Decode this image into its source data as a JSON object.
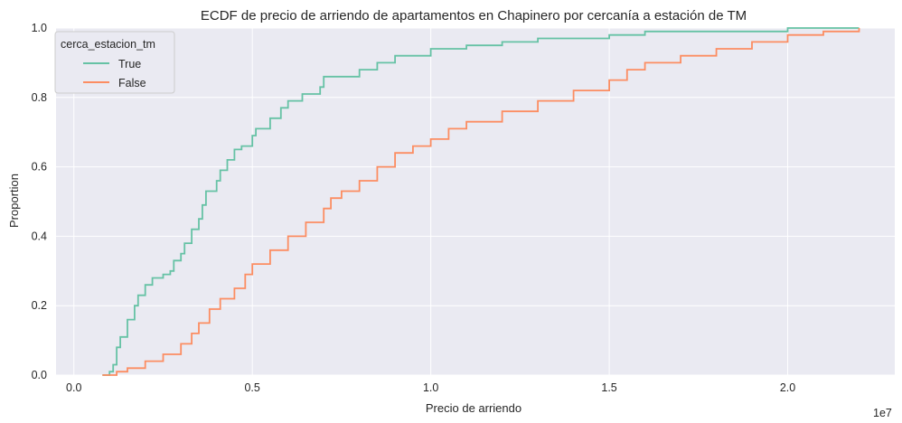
{
  "chart_data": {
    "type": "line",
    "subtype": "ecdf-step",
    "title": "ECDF de precio de arriendo de apartamentos en Chapinero por cercanía a estación de TM",
    "xlabel": "Precio de arriendo",
    "ylabel": "Proportion",
    "x_offset_label": "1e7",
    "xlim": [
      -0.05,
      2.3
    ],
    "ylim": [
      0,
      1
    ],
    "x_ticks": [
      0.0,
      0.5,
      1.0,
      1.5,
      2.0
    ],
    "x_tick_labels": [
      "0.0",
      "0.5",
      "1.0",
      "1.5",
      "2.0"
    ],
    "y_ticks": [
      0.0,
      0.2,
      0.4,
      0.6,
      0.8,
      1.0
    ],
    "y_tick_labels": [
      "0.0",
      "0.2",
      "0.4",
      "0.6",
      "0.8",
      "1.0"
    ],
    "grid": true,
    "legend_position": "top-left",
    "legend_title": "cerca_estacion_tm",
    "background_color": "#eaeaf2",
    "grid_color": "#ffffff",
    "series": [
      {
        "name": "True",
        "color": "#66c2a5",
        "points": [
          [
            0.08,
            0.0
          ],
          [
            0.1,
            0.01
          ],
          [
            0.11,
            0.03
          ],
          [
            0.12,
            0.08
          ],
          [
            0.13,
            0.11
          ],
          [
            0.15,
            0.16
          ],
          [
            0.17,
            0.2
          ],
          [
            0.18,
            0.23
          ],
          [
            0.2,
            0.26
          ],
          [
            0.22,
            0.28
          ],
          [
            0.25,
            0.29
          ],
          [
            0.27,
            0.3
          ],
          [
            0.28,
            0.33
          ],
          [
            0.3,
            0.35
          ],
          [
            0.31,
            0.38
          ],
          [
            0.33,
            0.42
          ],
          [
            0.35,
            0.45
          ],
          [
            0.36,
            0.49
          ],
          [
            0.37,
            0.53
          ],
          [
            0.4,
            0.56
          ],
          [
            0.41,
            0.59
          ],
          [
            0.43,
            0.62
          ],
          [
            0.45,
            0.65
          ],
          [
            0.47,
            0.66
          ],
          [
            0.5,
            0.69
          ],
          [
            0.51,
            0.71
          ],
          [
            0.55,
            0.74
          ],
          [
            0.58,
            0.77
          ],
          [
            0.6,
            0.79
          ],
          [
            0.64,
            0.81
          ],
          [
            0.69,
            0.83
          ],
          [
            0.7,
            0.86
          ],
          [
            0.8,
            0.88
          ],
          [
            0.85,
            0.9
          ],
          [
            0.9,
            0.92
          ],
          [
            1.0,
            0.94
          ],
          [
            1.1,
            0.95
          ],
          [
            1.2,
            0.96
          ],
          [
            1.3,
            0.97
          ],
          [
            1.5,
            0.98
          ],
          [
            1.6,
            0.99
          ],
          [
            2.0,
            1.0
          ],
          [
            2.2,
            1.0
          ]
        ]
      },
      {
        "name": "False",
        "color": "#fc8d62",
        "points": [
          [
            0.08,
            0.0
          ],
          [
            0.12,
            0.01
          ],
          [
            0.15,
            0.02
          ],
          [
            0.2,
            0.04
          ],
          [
            0.25,
            0.06
          ],
          [
            0.3,
            0.09
          ],
          [
            0.33,
            0.12
          ],
          [
            0.35,
            0.15
          ],
          [
            0.38,
            0.19
          ],
          [
            0.41,
            0.22
          ],
          [
            0.45,
            0.25
          ],
          [
            0.48,
            0.29
          ],
          [
            0.5,
            0.32
          ],
          [
            0.55,
            0.36
          ],
          [
            0.6,
            0.4
          ],
          [
            0.65,
            0.44
          ],
          [
            0.7,
            0.48
          ],
          [
            0.72,
            0.51
          ],
          [
            0.75,
            0.53
          ],
          [
            0.8,
            0.56
          ],
          [
            0.85,
            0.6
          ],
          [
            0.9,
            0.64
          ],
          [
            0.95,
            0.66
          ],
          [
            1.0,
            0.68
          ],
          [
            1.05,
            0.71
          ],
          [
            1.1,
            0.73
          ],
          [
            1.2,
            0.76
          ],
          [
            1.3,
            0.79
          ],
          [
            1.4,
            0.82
          ],
          [
            1.5,
            0.85
          ],
          [
            1.55,
            0.88
          ],
          [
            1.6,
            0.9
          ],
          [
            1.7,
            0.92
          ],
          [
            1.8,
            0.94
          ],
          [
            1.9,
            0.96
          ],
          [
            2.0,
            0.98
          ],
          [
            2.1,
            0.99
          ],
          [
            2.2,
            1.0
          ]
        ]
      }
    ]
  }
}
